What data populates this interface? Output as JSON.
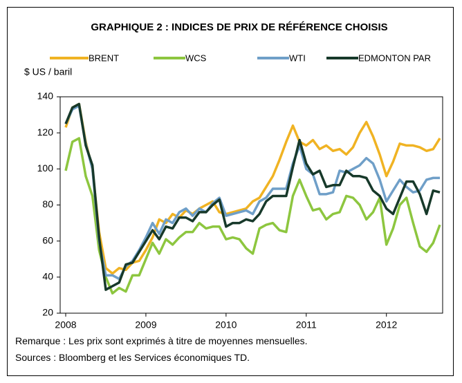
{
  "chart_data": {
    "type": "line",
    "title": "GRAPHIQUE 2 : INDICES DE PRIX DE RÉFÉRENCE CHOISIS",
    "y_label": "$ US / baril",
    "categories": [
      "2008",
      null,
      null,
      null,
      null,
      null,
      null,
      null,
      null,
      null,
      null,
      null,
      "2009",
      null,
      null,
      null,
      null,
      null,
      null,
      null,
      null,
      null,
      null,
      null,
      "2010",
      null,
      null,
      null,
      null,
      null,
      null,
      null,
      null,
      null,
      null,
      null,
      "2011",
      null,
      null,
      null,
      null,
      null,
      null,
      null,
      null,
      null,
      null,
      null,
      "2012",
      null,
      null,
      null,
      null,
      null,
      null,
      null,
      null
    ],
    "series": [
      {
        "name": "BRENT",
        "color": "#f0b323",
        "values": [
          123,
          134,
          136,
          115,
          100,
          65,
          45,
          42,
          45,
          44,
          48,
          49,
          55,
          62,
          72,
          70,
          75,
          73,
          77,
          75,
          78,
          80,
          82,
          76,
          75,
          76,
          77,
          78,
          82,
          84,
          90,
          96,
          105,
          115,
          124,
          115,
          113,
          116,
          111,
          113,
          110,
          111,
          108,
          112,
          120,
          126,
          118,
          108,
          96,
          104,
          114,
          113,
          113,
          112,
          110,
          111,
          117
        ]
      },
      {
        "name": "WCS",
        "color": "#8dc63f",
        "values": [
          99,
          115,
          117,
          96,
          85,
          55,
          40,
          31,
          34,
          32,
          41,
          41,
          50,
          59,
          53,
          61,
          58,
          62,
          65,
          65,
          70,
          67,
          68,
          68,
          61,
          62,
          61,
          56,
          53,
          67,
          69,
          70,
          66,
          65,
          85,
          94,
          85,
          77,
          78,
          72,
          75,
          76,
          85,
          84,
          80,
          72,
          76,
          84,
          58,
          67,
          80,
          84,
          70,
          57,
          54,
          59,
          69
        ]
      },
      {
        "name": "WTI",
        "color": "#6f9fc8",
        "values": [
          125,
          133,
          135,
          114,
          100,
          60,
          41,
          41,
          39,
          46,
          49,
          55,
          62,
          70,
          64,
          72,
          70,
          76,
          78,
          74,
          78,
          76,
          81,
          84,
          74,
          75,
          76,
          77,
          75,
          82,
          84,
          89,
          89,
          89,
          103,
          113,
          100,
          97,
          86,
          86,
          87,
          99,
          98,
          100,
          102,
          106,
          103,
          94,
          82,
          88,
          94,
          90,
          87,
          88,
          94,
          95,
          95
        ]
      },
      {
        "name": "EDMONTON PAR",
        "color": "#17392a",
        "values": [
          125,
          134,
          136,
          113,
          102,
          62,
          33,
          35,
          37,
          47,
          48,
          54,
          60,
          66,
          61,
          68,
          67,
          73,
          73,
          71,
          76,
          76,
          80,
          83,
          68,
          70,
          70,
          72,
          71,
          75,
          82,
          85,
          85,
          85,
          101,
          116,
          103,
          97,
          99,
          90,
          91,
          91,
          99,
          96,
          96,
          95,
          88,
          85,
          78,
          75,
          84,
          93,
          93,
          86,
          75,
          88,
          87
        ]
      }
    ],
    "ylim": [
      20,
      140
    ],
    "yticks": [
      20,
      40,
      60,
      80,
      100,
      120,
      140
    ],
    "notes": [
      "Remarque : Les prix sont exprimés à titre de moyennes mensuelles.",
      "Sources : Bloomberg et les Services économiques TD."
    ]
  }
}
